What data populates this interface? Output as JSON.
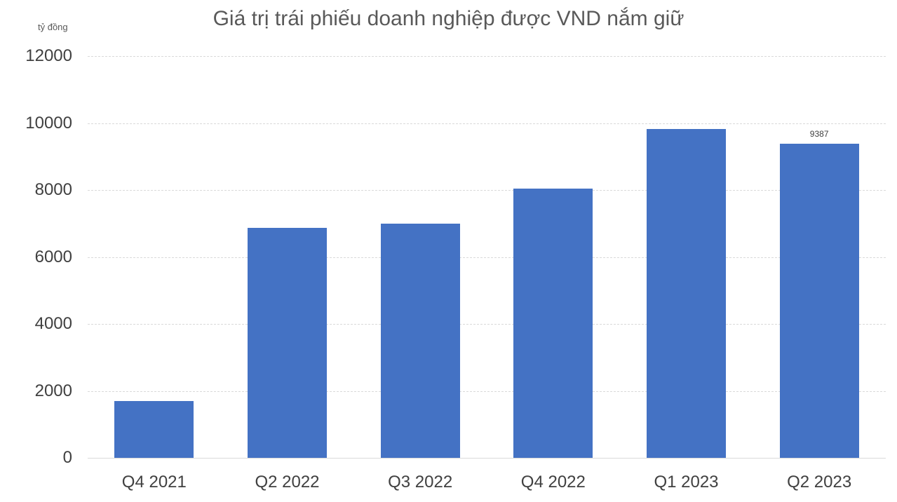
{
  "chart_data": {
    "type": "bar",
    "title": "Giá trị trái phiếu doanh nghiệp được VND nắm giữ",
    "ylabel": "tỷ đồng",
    "xlabel": "",
    "categories": [
      "Q4 2021",
      "Q2 2022",
      "Q3 2022",
      "Q4 2022",
      "Q1 2023",
      "Q2 2023"
    ],
    "values": [
      1700,
      6860,
      7000,
      8050,
      9830,
      9387
    ],
    "data_labels": [
      "",
      "",
      "",
      "",
      "",
      "9387"
    ],
    "y_ticks": [
      0,
      2000,
      4000,
      6000,
      8000,
      10000,
      12000
    ],
    "ylim": [
      0,
      12000
    ],
    "grid": "horizontal-dashed",
    "legend": "none",
    "colors": {
      "bar": "#4472C4",
      "gridline": "#D9D9D9",
      "axis_line": "#D9D9D9",
      "title": "#595959",
      "tick_label": "#404040",
      "unit_label": "#595959",
      "data_label": "#404040"
    }
  }
}
